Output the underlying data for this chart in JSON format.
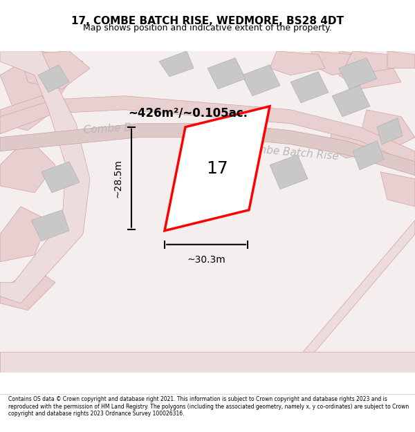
{
  "title": "17, COMBE BATCH RISE, WEDMORE, BS28 4DT",
  "subtitle": "Map shows position and indicative extent of the property.",
  "footer": "Contains OS data © Crown copyright and database right 2021. This information is subject to Crown copyright and database rights 2023 and is reproduced with the permission of HM Land Registry. The polygons (including the associated geometry, namely x, y co-ordinates) are subject to Crown copyright and database rights 2023 Ordnance Survey 100026316.",
  "background_color": "#f9f0f0",
  "map_background": "#f5eeee",
  "area_label": "~426m²/~0.105ac.",
  "plot_number": "17",
  "width_label": "~30.3m",
  "height_label": "~28.5m",
  "road_color": "#e8c8c8",
  "road_text_color": "#b0b0b0",
  "plot_color": "#ff0000",
  "building_color": "#d0d0d0",
  "dim_line_color": "#000000"
}
